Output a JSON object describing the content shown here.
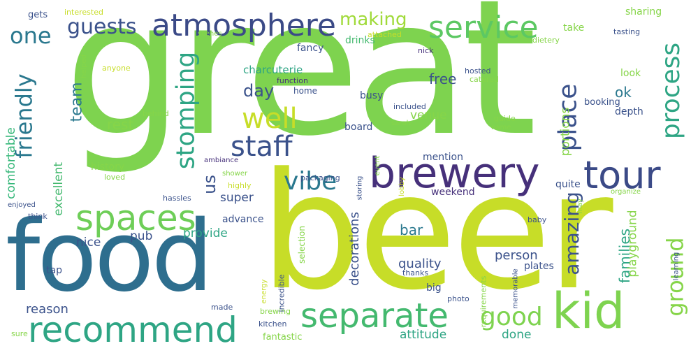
{
  "colors": {
    "background": "#ffffff",
    "green_light": "#7ed34f",
    "lime": "#c7dd28",
    "teal_dark": "#2e6e8e",
    "navy": "#3b4a87",
    "purple": "#46307a",
    "teal": "#2ea584",
    "sea": "#44b96f",
    "mint": "#a3d653"
  },
  "words": [
    {
      "text": "great",
      "color": "#7ed34f"
    },
    {
      "text": "beer",
      "color": "#c7dd28"
    },
    {
      "text": "food",
      "color": "#2e6e8e"
    },
    {
      "text": "brewery",
      "color": "#46307a"
    },
    {
      "text": "kid",
      "color": "#7ed34f"
    },
    {
      "text": "recommend",
      "color": "#2ea584"
    },
    {
      "text": "separate",
      "color": "#44b96f"
    },
    {
      "text": "atmosphere",
      "color": "#3b4a87"
    },
    {
      "text": "service",
      "color": "#5cc863"
    },
    {
      "text": "tour",
      "color": "#3b4a87"
    },
    {
      "text": "spaces",
      "color": "#6ece58"
    },
    {
      "text": "good",
      "color": "#7ed34f"
    },
    {
      "text": "one",
      "color": "#2a788e"
    },
    {
      "text": "guests",
      "color": "#3b528b"
    },
    {
      "text": "making",
      "color": "#a0da39"
    },
    {
      "text": "friendly",
      "color": "#2a788e"
    },
    {
      "text": "stomping",
      "color": "#2ea584"
    },
    {
      "text": "staff",
      "color": "#3b528b"
    },
    {
      "text": "well",
      "color": "#c7dd28"
    },
    {
      "text": "place",
      "color": "#3b528b"
    },
    {
      "text": "process",
      "color": "#2ea584"
    },
    {
      "text": "ground",
      "color": "#86d549"
    },
    {
      "text": "vibe",
      "color": "#2a788e"
    },
    {
      "text": "amazing",
      "color": "#3b528b"
    },
    {
      "text": "team",
      "color": "#2a788e"
    },
    {
      "text": "day",
      "color": "#3b528b"
    },
    {
      "text": "us",
      "color": "#3b528b"
    },
    {
      "text": "families",
      "color": "#2ea584"
    },
    {
      "text": "attitude",
      "color": "#2ea584"
    },
    {
      "text": "quality",
      "color": "#3b528b"
    },
    {
      "text": "reason",
      "color": "#3b528b"
    },
    {
      "text": "portions",
      "color": "#86d549"
    },
    {
      "text": "decorations",
      "color": "#3b528b"
    },
    {
      "text": "free",
      "color": "#3b528b"
    },
    {
      "text": "ok",
      "color": "#2a788e"
    },
    {
      "text": "excellent",
      "color": "#44b96f"
    },
    {
      "text": "comfortable",
      "color": "#35b779"
    },
    {
      "text": "rest",
      "color": "#86d549"
    },
    {
      "text": "super",
      "color": "#3b528b"
    },
    {
      "text": "provide",
      "color": "#2ea584"
    },
    {
      "text": "pub",
      "color": "#3b528b"
    },
    {
      "text": "nice",
      "color": "#3b528b"
    },
    {
      "text": "bar",
      "color": "#2a788e"
    },
    {
      "text": "venue",
      "color": "#86d549"
    },
    {
      "text": "person",
      "color": "#3b528b"
    },
    {
      "text": "done",
      "color": "#2ea584"
    },
    {
      "text": "fantastic",
      "color": "#86d549"
    },
    {
      "text": "charcuterie",
      "color": "#2ea584"
    },
    {
      "text": "busy",
      "color": "#3b528b"
    },
    {
      "text": "board",
      "color": "#3b528b"
    },
    {
      "text": "playground",
      "color": "#86d549"
    },
    {
      "text": "history",
      "color": "#86d549"
    },
    {
      "text": "drinks",
      "color": "#44b96f"
    },
    {
      "text": "fancy",
      "color": "#3b528b"
    },
    {
      "text": "mention",
      "color": "#3b528b"
    },
    {
      "text": "weekend",
      "color": "#46307a"
    },
    {
      "text": "advance",
      "color": "#3b528b"
    },
    {
      "text": "plates",
      "color": "#3b528b"
    },
    {
      "text": "big",
      "color": "#3b528b"
    },
    {
      "text": "tap",
      "color": "#3b528b"
    },
    {
      "text": "selection",
      "color": "#86d549"
    },
    {
      "text": "quite",
      "color": "#3b528b"
    },
    {
      "text": "depth",
      "color": "#3b528b"
    },
    {
      "text": "look",
      "color": "#86d549"
    },
    {
      "text": "booking",
      "color": "#3b528b"
    },
    {
      "text": "sharing",
      "color": "#86d549"
    },
    {
      "text": "take",
      "color": "#86d549"
    },
    {
      "text": "tasting",
      "color": "#3b528b"
    },
    {
      "text": "dietery",
      "color": "#86d549"
    },
    {
      "text": "nick",
      "color": "#46307a"
    },
    {
      "text": "home",
      "color": "#3b528b"
    },
    {
      "text": "hosted",
      "color": "#3b528b"
    },
    {
      "text": "catered",
      "color": "#86d549"
    },
    {
      "text": "included",
      "color": "#3b528b"
    },
    {
      "text": "guide",
      "color": "#86d549"
    },
    {
      "text": "sarah",
      "color": "#86d549"
    },
    {
      "text": "name",
      "color": "#86d549"
    },
    {
      "text": "function",
      "color": "#46307a"
    },
    {
      "text": "behind",
      "color": "#86d549"
    },
    {
      "text": "anyone",
      "color": "#c7dd28"
    },
    {
      "text": "helped",
      "color": "#86d549"
    },
    {
      "text": "gets",
      "color": "#3b528b"
    },
    {
      "text": "interested",
      "color": "#c7dd28"
    },
    {
      "text": "scenes",
      "color": "#86d549"
    },
    {
      "text": "attached",
      "color": "#c7dd28"
    },
    {
      "text": "packaging",
      "color": "#3b528b"
    },
    {
      "text": "event",
      "color": "#86d549"
    },
    {
      "text": "ambiance",
      "color": "#46307a"
    },
    {
      "text": "shower",
      "color": "#86d549"
    },
    {
      "text": "highly",
      "color": "#c7dd28"
    },
    {
      "text": "loved",
      "color": "#86d549"
    },
    {
      "text": "hassles",
      "color": "#3b528b"
    },
    {
      "text": "enjoyed",
      "color": "#3b528b"
    },
    {
      "text": "think",
      "color": "#3b528b"
    },
    {
      "text": "storing",
      "color": "#3b528b"
    },
    {
      "text": "lobby",
      "color": "#c7dd28"
    },
    {
      "text": "may",
      "color": "#86d549"
    },
    {
      "text": "organize",
      "color": "#86d549"
    },
    {
      "text": "baby",
      "color": "#3b528b"
    },
    {
      "text": "energy",
      "color": "#c7dd28"
    },
    {
      "text": "made",
      "color": "#3b528b"
    },
    {
      "text": "incredible",
      "color": "#3b528b"
    },
    {
      "text": "thanks",
      "color": "#3b528b"
    },
    {
      "text": "photo",
      "color": "#3b528b"
    },
    {
      "text": "requirements",
      "color": "#86d549"
    },
    {
      "text": "memorable",
      "color": "#3b528b"
    },
    {
      "text": "learning",
      "color": "#3b528b"
    },
    {
      "text": "brewing",
      "color": "#86d549"
    },
    {
      "text": "kitchen",
      "color": "#3b528b"
    },
    {
      "text": "sure",
      "color": "#86d549"
    }
  ]
}
